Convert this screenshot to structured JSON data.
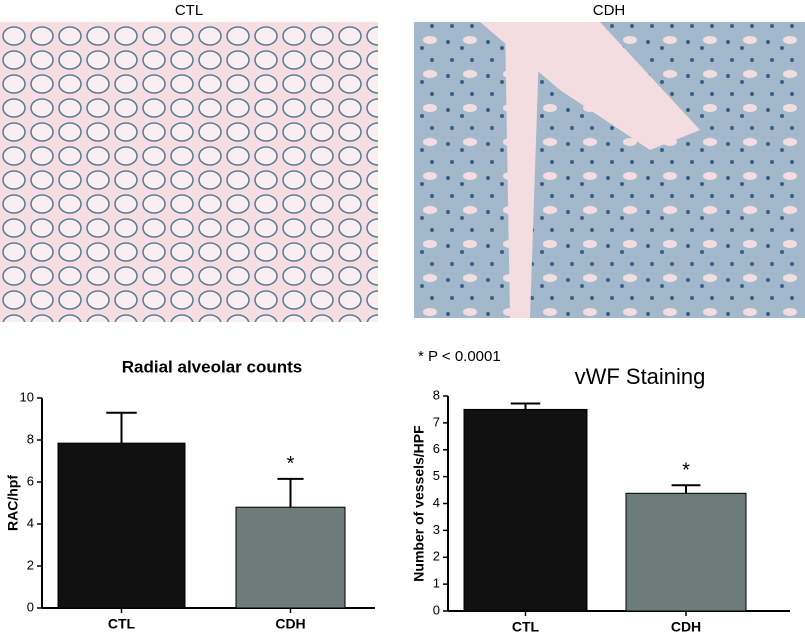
{
  "panels": [
    {
      "label": "CTL"
    },
    {
      "label": "CDH"
    }
  ],
  "chart_data": [
    {
      "type": "bar",
      "title": "Radial alveolar counts",
      "y_label": "RAC/hpf",
      "categories": [
        "CTL",
        "CDH"
      ],
      "values": [
        7.85,
        4.8
      ],
      "errors": [
        1.45,
        1.35
      ],
      "colors": [
        "#111111",
        "#6e7b7b"
      ],
      "ylim": [
        0,
        10
      ],
      "yticks": [
        0,
        2,
        4,
        6,
        8,
        10
      ],
      "annotations": [
        "*"
      ]
    },
    {
      "type": "bar",
      "title": "vWF Staining",
      "y_label": "Number of vessels/HPF",
      "categories": [
        "CTL",
        "CDH"
      ],
      "values": [
        7.5,
        4.38
      ],
      "errors": [
        0.22,
        0.3
      ],
      "colors": [
        "#111111",
        "#6e7b7b"
      ],
      "ylim": [
        0,
        8
      ],
      "yticks": [
        0,
        1,
        2,
        3,
        4,
        5,
        6,
        7,
        8
      ],
      "annotations": [
        "*"
      ],
      "note": "* P < 0.0001"
    }
  ]
}
